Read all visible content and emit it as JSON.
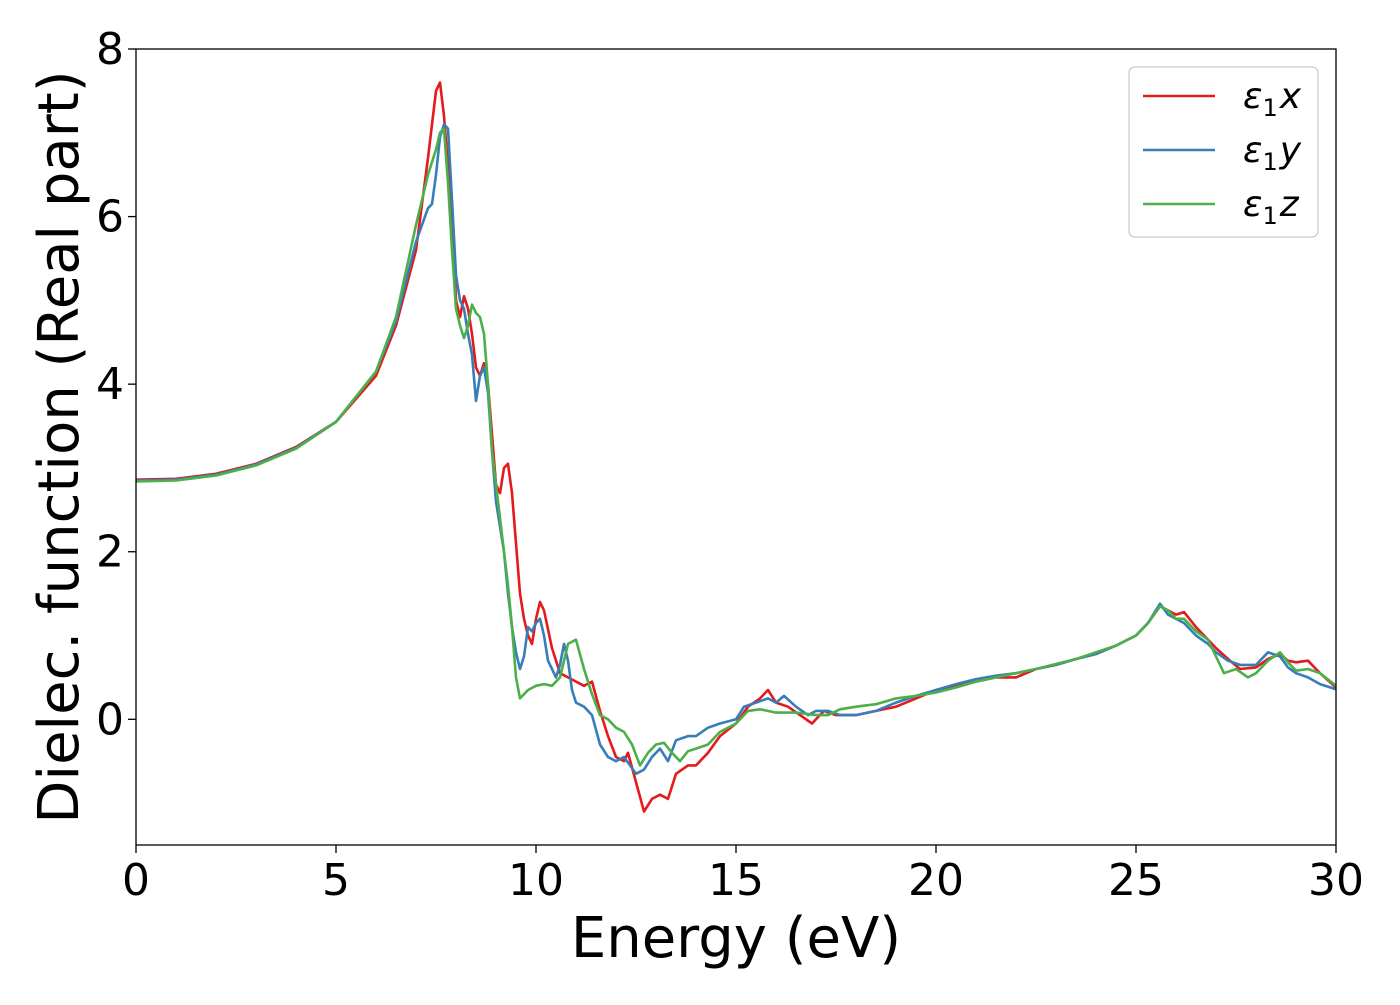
{
  "chart_data": {
    "type": "line",
    "title": "",
    "xlabel": "Energy (eV)",
    "ylabel": "Dielec. function (Real part)",
    "xlim": [
      0,
      30
    ],
    "ylim": [
      -1.5,
      8
    ],
    "xticks": [
      "0",
      "5",
      "10",
      "15",
      "20",
      "25",
      "30"
    ],
    "yticks": [
      "0",
      "2",
      "4",
      "6",
      "8"
    ],
    "grid": false,
    "legend_position": "top-right",
    "series": [
      {
        "name": "ε1x",
        "legend": {
          "base": "ε",
          "sub": "1",
          "axis": "x"
        },
        "color": "#e41a1c",
        "points": [
          [
            0,
            2.86
          ],
          [
            1,
            2.87
          ],
          [
            2,
            2.93
          ],
          [
            3,
            3.05
          ],
          [
            4,
            3.25
          ],
          [
            5,
            3.55
          ],
          [
            6,
            4.1
          ],
          [
            6.5,
            4.7
          ],
          [
            7,
            5.6
          ],
          [
            7.3,
            6.7
          ],
          [
            7.5,
            7.5
          ],
          [
            7.6,
            7.6
          ],
          [
            7.7,
            7.2
          ],
          [
            7.8,
            6.6
          ],
          [
            7.9,
            6.0
          ],
          [
            8.0,
            5.0
          ],
          [
            8.1,
            4.8
          ],
          [
            8.2,
            5.05
          ],
          [
            8.3,
            4.9
          ],
          [
            8.4,
            4.6
          ],
          [
            8.5,
            4.2
          ],
          [
            8.6,
            4.1
          ],
          [
            8.7,
            4.25
          ],
          [
            8.8,
            4.0
          ],
          [
            8.9,
            3.4
          ],
          [
            9.0,
            2.8
          ],
          [
            9.1,
            2.7
          ],
          [
            9.2,
            3.0
          ],
          [
            9.3,
            3.05
          ],
          [
            9.4,
            2.7
          ],
          [
            9.5,
            2.1
          ],
          [
            9.6,
            1.5
          ],
          [
            9.7,
            1.2
          ],
          [
            9.8,
            1.0
          ],
          [
            9.9,
            0.9
          ],
          [
            10.0,
            1.2
          ],
          [
            10.1,
            1.4
          ],
          [
            10.2,
            1.3
          ],
          [
            10.4,
            0.85
          ],
          [
            10.6,
            0.55
          ],
          [
            10.8,
            0.5
          ],
          [
            11.0,
            0.45
          ],
          [
            11.2,
            0.4
          ],
          [
            11.4,
            0.45
          ],
          [
            11.6,
            0.1
          ],
          [
            11.8,
            -0.2
          ],
          [
            12.0,
            -0.45
          ],
          [
            12.2,
            -0.5
          ],
          [
            12.3,
            -0.4
          ],
          [
            12.5,
            -0.75
          ],
          [
            12.7,
            -1.1
          ],
          [
            12.9,
            -0.95
          ],
          [
            13.1,
            -0.9
          ],
          [
            13.3,
            -0.95
          ],
          [
            13.5,
            -0.65
          ],
          [
            13.8,
            -0.55
          ],
          [
            14.0,
            -0.55
          ],
          [
            14.3,
            -0.4
          ],
          [
            14.6,
            -0.2
          ],
          [
            15.0,
            -0.05
          ],
          [
            15.3,
            0.15
          ],
          [
            15.6,
            0.25
          ],
          [
            15.8,
            0.35
          ],
          [
            16.0,
            0.2
          ],
          [
            16.3,
            0.15
          ],
          [
            16.6,
            0.05
          ],
          [
            16.9,
            -0.05
          ],
          [
            17.2,
            0.1
          ],
          [
            17.5,
            0.05
          ],
          [
            18.0,
            0.05
          ],
          [
            18.5,
            0.1
          ],
          [
            19.0,
            0.15
          ],
          [
            19.5,
            0.25
          ],
          [
            20.0,
            0.35
          ],
          [
            20.5,
            0.4
          ],
          [
            21.0,
            0.45
          ],
          [
            21.5,
            0.5
          ],
          [
            22.0,
            0.5
          ],
          [
            22.5,
            0.6
          ],
          [
            23.0,
            0.65
          ],
          [
            23.5,
            0.72
          ],
          [
            24.0,
            0.78
          ],
          [
            24.5,
            0.88
          ],
          [
            25.0,
            1.0
          ],
          [
            25.3,
            1.15
          ],
          [
            25.6,
            1.35
          ],
          [
            25.8,
            1.3
          ],
          [
            26.0,
            1.25
          ],
          [
            26.2,
            1.28
          ],
          [
            26.5,
            1.1
          ],
          [
            26.8,
            0.95
          ],
          [
            27.0,
            0.85
          ],
          [
            27.3,
            0.72
          ],
          [
            27.6,
            0.6
          ],
          [
            28.0,
            0.62
          ],
          [
            28.3,
            0.72
          ],
          [
            28.6,
            0.78
          ],
          [
            28.8,
            0.7
          ],
          [
            29.0,
            0.68
          ],
          [
            29.3,
            0.7
          ],
          [
            29.6,
            0.55
          ],
          [
            30.0,
            0.38
          ]
        ]
      },
      {
        "name": "ε1y",
        "legend": {
          "base": "ε",
          "sub": "1",
          "axis": "y"
        },
        "color": "#377eb8",
        "points": [
          [
            0,
            2.85
          ],
          [
            1,
            2.86
          ],
          [
            2,
            2.92
          ],
          [
            3,
            3.04
          ],
          [
            4,
            3.24
          ],
          [
            5,
            3.55
          ],
          [
            6,
            4.15
          ],
          [
            6.5,
            4.75
          ],
          [
            7,
            5.7
          ],
          [
            7.3,
            6.1
          ],
          [
            7.4,
            6.15
          ],
          [
            7.5,
            6.5
          ],
          [
            7.6,
            6.95
          ],
          [
            7.7,
            7.1
          ],
          [
            7.8,
            7.05
          ],
          [
            7.9,
            6.2
          ],
          [
            8.0,
            5.3
          ],
          [
            8.1,
            5.0
          ],
          [
            8.2,
            4.9
          ],
          [
            8.3,
            4.6
          ],
          [
            8.4,
            4.35
          ],
          [
            8.5,
            3.8
          ],
          [
            8.6,
            4.1
          ],
          [
            8.7,
            4.2
          ],
          [
            8.8,
            3.9
          ],
          [
            8.9,
            3.2
          ],
          [
            9.0,
            2.6
          ],
          [
            9.1,
            2.3
          ],
          [
            9.2,
            2.0
          ],
          [
            9.3,
            1.5
          ],
          [
            9.4,
            1.1
          ],
          [
            9.5,
            0.8
          ],
          [
            9.6,
            0.6
          ],
          [
            9.7,
            0.75
          ],
          [
            9.8,
            1.1
          ],
          [
            9.9,
            1.05
          ],
          [
            10.0,
            1.15
          ],
          [
            10.1,
            1.2
          ],
          [
            10.2,
            1.0
          ],
          [
            10.3,
            0.7
          ],
          [
            10.4,
            0.6
          ],
          [
            10.5,
            0.5
          ],
          [
            10.6,
            0.65
          ],
          [
            10.7,
            0.9
          ],
          [
            10.8,
            0.7
          ],
          [
            10.9,
            0.35
          ],
          [
            11.0,
            0.2
          ],
          [
            11.2,
            0.15
          ],
          [
            11.4,
            0.05
          ],
          [
            11.6,
            -0.3
          ],
          [
            11.8,
            -0.45
          ],
          [
            12.0,
            -0.5
          ],
          [
            12.2,
            -0.45
          ],
          [
            12.5,
            -0.65
          ],
          [
            12.7,
            -0.6
          ],
          [
            12.9,
            -0.45
          ],
          [
            13.1,
            -0.35
          ],
          [
            13.3,
            -0.5
          ],
          [
            13.5,
            -0.25
          ],
          [
            13.8,
            -0.2
          ],
          [
            14.0,
            -0.2
          ],
          [
            14.3,
            -0.1
          ],
          [
            14.6,
            -0.05
          ],
          [
            15.0,
            0.0
          ],
          [
            15.2,
            0.15
          ],
          [
            15.5,
            0.2
          ],
          [
            15.8,
            0.25
          ],
          [
            16.0,
            0.2
          ],
          [
            16.2,
            0.28
          ],
          [
            16.5,
            0.15
          ],
          [
            16.8,
            0.05
          ],
          [
            17.0,
            0.1
          ],
          [
            17.3,
            0.1
          ],
          [
            17.6,
            0.05
          ],
          [
            18.0,
            0.05
          ],
          [
            18.5,
            0.1
          ],
          [
            19.0,
            0.2
          ],
          [
            19.5,
            0.28
          ],
          [
            20.0,
            0.35
          ],
          [
            20.5,
            0.42
          ],
          [
            21.0,
            0.48
          ],
          [
            21.5,
            0.52
          ],
          [
            22.0,
            0.55
          ],
          [
            22.5,
            0.6
          ],
          [
            23.0,
            0.65
          ],
          [
            23.5,
            0.72
          ],
          [
            24.0,
            0.78
          ],
          [
            24.5,
            0.88
          ],
          [
            25.0,
            1.0
          ],
          [
            25.3,
            1.15
          ],
          [
            25.6,
            1.38
          ],
          [
            25.8,
            1.25
          ],
          [
            26.0,
            1.2
          ],
          [
            26.2,
            1.15
          ],
          [
            26.5,
            1.0
          ],
          [
            26.8,
            0.9
          ],
          [
            27.0,
            0.8
          ],
          [
            27.3,
            0.7
          ],
          [
            27.6,
            0.65
          ],
          [
            28.0,
            0.65
          ],
          [
            28.3,
            0.8
          ],
          [
            28.6,
            0.75
          ],
          [
            28.8,
            0.62
          ],
          [
            29.0,
            0.55
          ],
          [
            29.3,
            0.5
          ],
          [
            29.6,
            0.42
          ],
          [
            30.0,
            0.36
          ]
        ]
      },
      {
        "name": "ε1z",
        "legend": {
          "base": "ε",
          "sub": "1",
          "axis": "z"
        },
        "color": "#4daf4a",
        "points": [
          [
            0,
            2.84
          ],
          [
            1,
            2.85
          ],
          [
            2,
            2.91
          ],
          [
            3,
            3.03
          ],
          [
            4,
            3.23
          ],
          [
            5,
            3.55
          ],
          [
            6,
            4.15
          ],
          [
            6.5,
            4.8
          ],
          [
            7,
            5.9
          ],
          [
            7.3,
            6.5
          ],
          [
            7.5,
            6.8
          ],
          [
            7.6,
            7.0
          ],
          [
            7.7,
            7.05
          ],
          [
            7.8,
            6.4
          ],
          [
            7.9,
            5.6
          ],
          [
            8.0,
            4.9
          ],
          [
            8.1,
            4.7
          ],
          [
            8.2,
            4.55
          ],
          [
            8.3,
            4.7
          ],
          [
            8.4,
            4.95
          ],
          [
            8.5,
            4.85
          ],
          [
            8.6,
            4.8
          ],
          [
            8.7,
            4.6
          ],
          [
            8.8,
            4.0
          ],
          [
            8.9,
            3.2
          ],
          [
            9.0,
            2.8
          ],
          [
            9.1,
            2.4
          ],
          [
            9.2,
            2.0
          ],
          [
            9.3,
            1.6
          ],
          [
            9.4,
            1.1
          ],
          [
            9.5,
            0.5
          ],
          [
            9.6,
            0.25
          ],
          [
            9.7,
            0.3
          ],
          [
            9.8,
            0.35
          ],
          [
            10.0,
            0.4
          ],
          [
            10.2,
            0.42
          ],
          [
            10.4,
            0.4
          ],
          [
            10.6,
            0.5
          ],
          [
            10.8,
            0.9
          ],
          [
            11.0,
            0.95
          ],
          [
            11.2,
            0.6
          ],
          [
            11.4,
            0.3
          ],
          [
            11.6,
            0.05
          ],
          [
            11.8,
            0.0
          ],
          [
            12.0,
            -0.1
          ],
          [
            12.2,
            -0.15
          ],
          [
            12.4,
            -0.3
          ],
          [
            12.6,
            -0.55
          ],
          [
            12.8,
            -0.4
          ],
          [
            13.0,
            -0.3
          ],
          [
            13.2,
            -0.28
          ],
          [
            13.4,
            -0.4
          ],
          [
            13.6,
            -0.5
          ],
          [
            13.8,
            -0.38
          ],
          [
            14.0,
            -0.35
          ],
          [
            14.3,
            -0.3
          ],
          [
            14.6,
            -0.15
          ],
          [
            15.0,
            -0.05
          ],
          [
            15.3,
            0.1
          ],
          [
            15.6,
            0.12
          ],
          [
            16.0,
            0.08
          ],
          [
            16.5,
            0.08
          ],
          [
            17.0,
            0.05
          ],
          [
            17.3,
            0.05
          ],
          [
            17.6,
            0.12
          ],
          [
            18.0,
            0.15
          ],
          [
            18.5,
            0.18
          ],
          [
            19.0,
            0.25
          ],
          [
            19.5,
            0.28
          ],
          [
            20.0,
            0.32
          ],
          [
            20.5,
            0.38
          ],
          [
            21.0,
            0.45
          ],
          [
            21.5,
            0.5
          ],
          [
            22.0,
            0.55
          ],
          [
            22.5,
            0.6
          ],
          [
            23.0,
            0.66
          ],
          [
            23.5,
            0.72
          ],
          [
            24.0,
            0.8
          ],
          [
            24.5,
            0.88
          ],
          [
            25.0,
            1.0
          ],
          [
            25.3,
            1.15
          ],
          [
            25.6,
            1.35
          ],
          [
            25.8,
            1.3
          ],
          [
            26.0,
            1.2
          ],
          [
            26.2,
            1.2
          ],
          [
            26.5,
            1.05
          ],
          [
            26.8,
            0.95
          ],
          [
            27.0,
            0.75
          ],
          [
            27.2,
            0.55
          ],
          [
            27.5,
            0.6
          ],
          [
            27.8,
            0.5
          ],
          [
            28.0,
            0.55
          ],
          [
            28.3,
            0.7
          ],
          [
            28.6,
            0.8
          ],
          [
            28.8,
            0.68
          ],
          [
            29.0,
            0.58
          ],
          [
            29.3,
            0.6
          ],
          [
            29.6,
            0.55
          ],
          [
            30.0,
            0.4
          ]
        ]
      }
    ]
  }
}
